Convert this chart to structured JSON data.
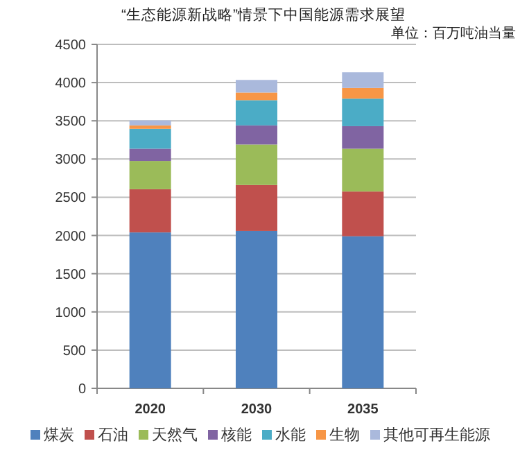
{
  "chart_data": {
    "type": "bar",
    "title": "“生态能源新战略”情景下中国能源需求展望",
    "annotations": [
      "单位：百万吨油当量"
    ],
    "categories": [
      "2020",
      "2030",
      "2035"
    ],
    "stacked": true,
    "series": [
      {
        "name": "煤炭",
        "color": "#4f81bd",
        "values": [
          2040,
          2060,
          1990
        ]
      },
      {
        "name": "石油",
        "color": "#c0504d",
        "values": [
          565,
          600,
          585
        ]
      },
      {
        "name": "天然气",
        "color": "#9bbb59",
        "values": [
          370,
          530,
          560
        ]
      },
      {
        "name": "核能",
        "color": "#8064a2",
        "values": [
          160,
          250,
          295
        ]
      },
      {
        "name": "水能",
        "color": "#4bacc6",
        "values": [
          260,
          330,
          360
        ]
      },
      {
        "name": "生物",
        "color": "#f79646",
        "values": [
          45,
          100,
          140
        ]
      },
      {
        "name": "其他可再生能源",
        "color": "#aab9dc",
        "values": [
          65,
          165,
          205
        ]
      }
    ],
    "ylim": [
      0,
      4500
    ],
    "yticks": [
      0,
      500,
      1000,
      1500,
      2000,
      2500,
      3000,
      3500,
      4000,
      4500
    ],
    "grid": "y",
    "legend": "bottom"
  }
}
